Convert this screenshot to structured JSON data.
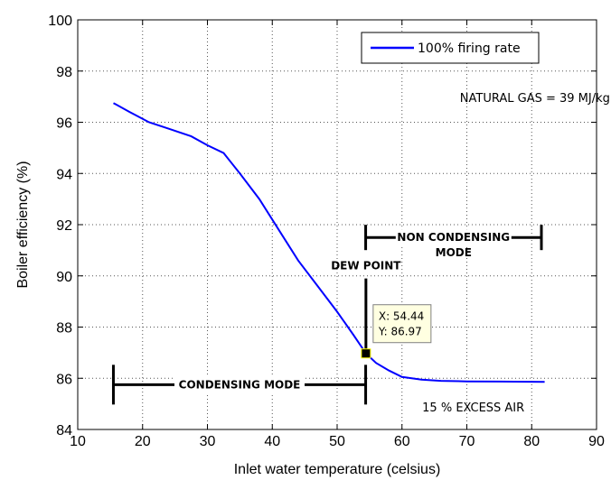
{
  "chart_data": {
    "type": "line",
    "xlabel": "Inlet water temperature (celsius)",
    "ylabel": "Boiler efficiency (%)",
    "xlim": [
      10,
      90
    ],
    "ylim": [
      84,
      100
    ],
    "xticks": [
      10,
      20,
      30,
      40,
      50,
      60,
      70,
      80,
      90
    ],
    "yticks": [
      84,
      86,
      88,
      90,
      92,
      94,
      96,
      98,
      100
    ],
    "grid": true,
    "legend_position": "top-right",
    "series": [
      {
        "name": "100% firing rate",
        "color": "#0000ff",
        "x": [
          15.5,
          18,
          21,
          24,
          27.5,
          30,
          32.5,
          35,
          38,
          41,
          44,
          47,
          50,
          52.5,
          54.44,
          56,
          58,
          60,
          63,
          66,
          70,
          75,
          82
        ],
        "y": [
          96.75,
          96.4,
          96.0,
          95.75,
          95.45,
          95.1,
          94.8,
          94.0,
          93.0,
          91.8,
          90.6,
          89.6,
          88.6,
          87.7,
          86.97,
          86.6,
          86.3,
          86.05,
          85.95,
          85.9,
          85.88,
          85.87,
          85.86
        ]
      }
    ],
    "annotations": {
      "fuel": "NATURAL GAS = 39 MJ/kg",
      "excess_air": "15 % EXCESS AIR",
      "dew_point": "DEW POINT",
      "condensing": "CONDENSING MODE",
      "non_condensing_line1": "NON CONDENSING",
      "non_condensing_line2": "MODE"
    },
    "datatip": {
      "x": 54.44,
      "y": 86.97,
      "x_text": "X: 54.44",
      "y_text": "Y: 86.97"
    },
    "condensing_range": [
      15.5,
      54.4
    ],
    "non_condensing_range": [
      54.4,
      81.5
    ]
  }
}
